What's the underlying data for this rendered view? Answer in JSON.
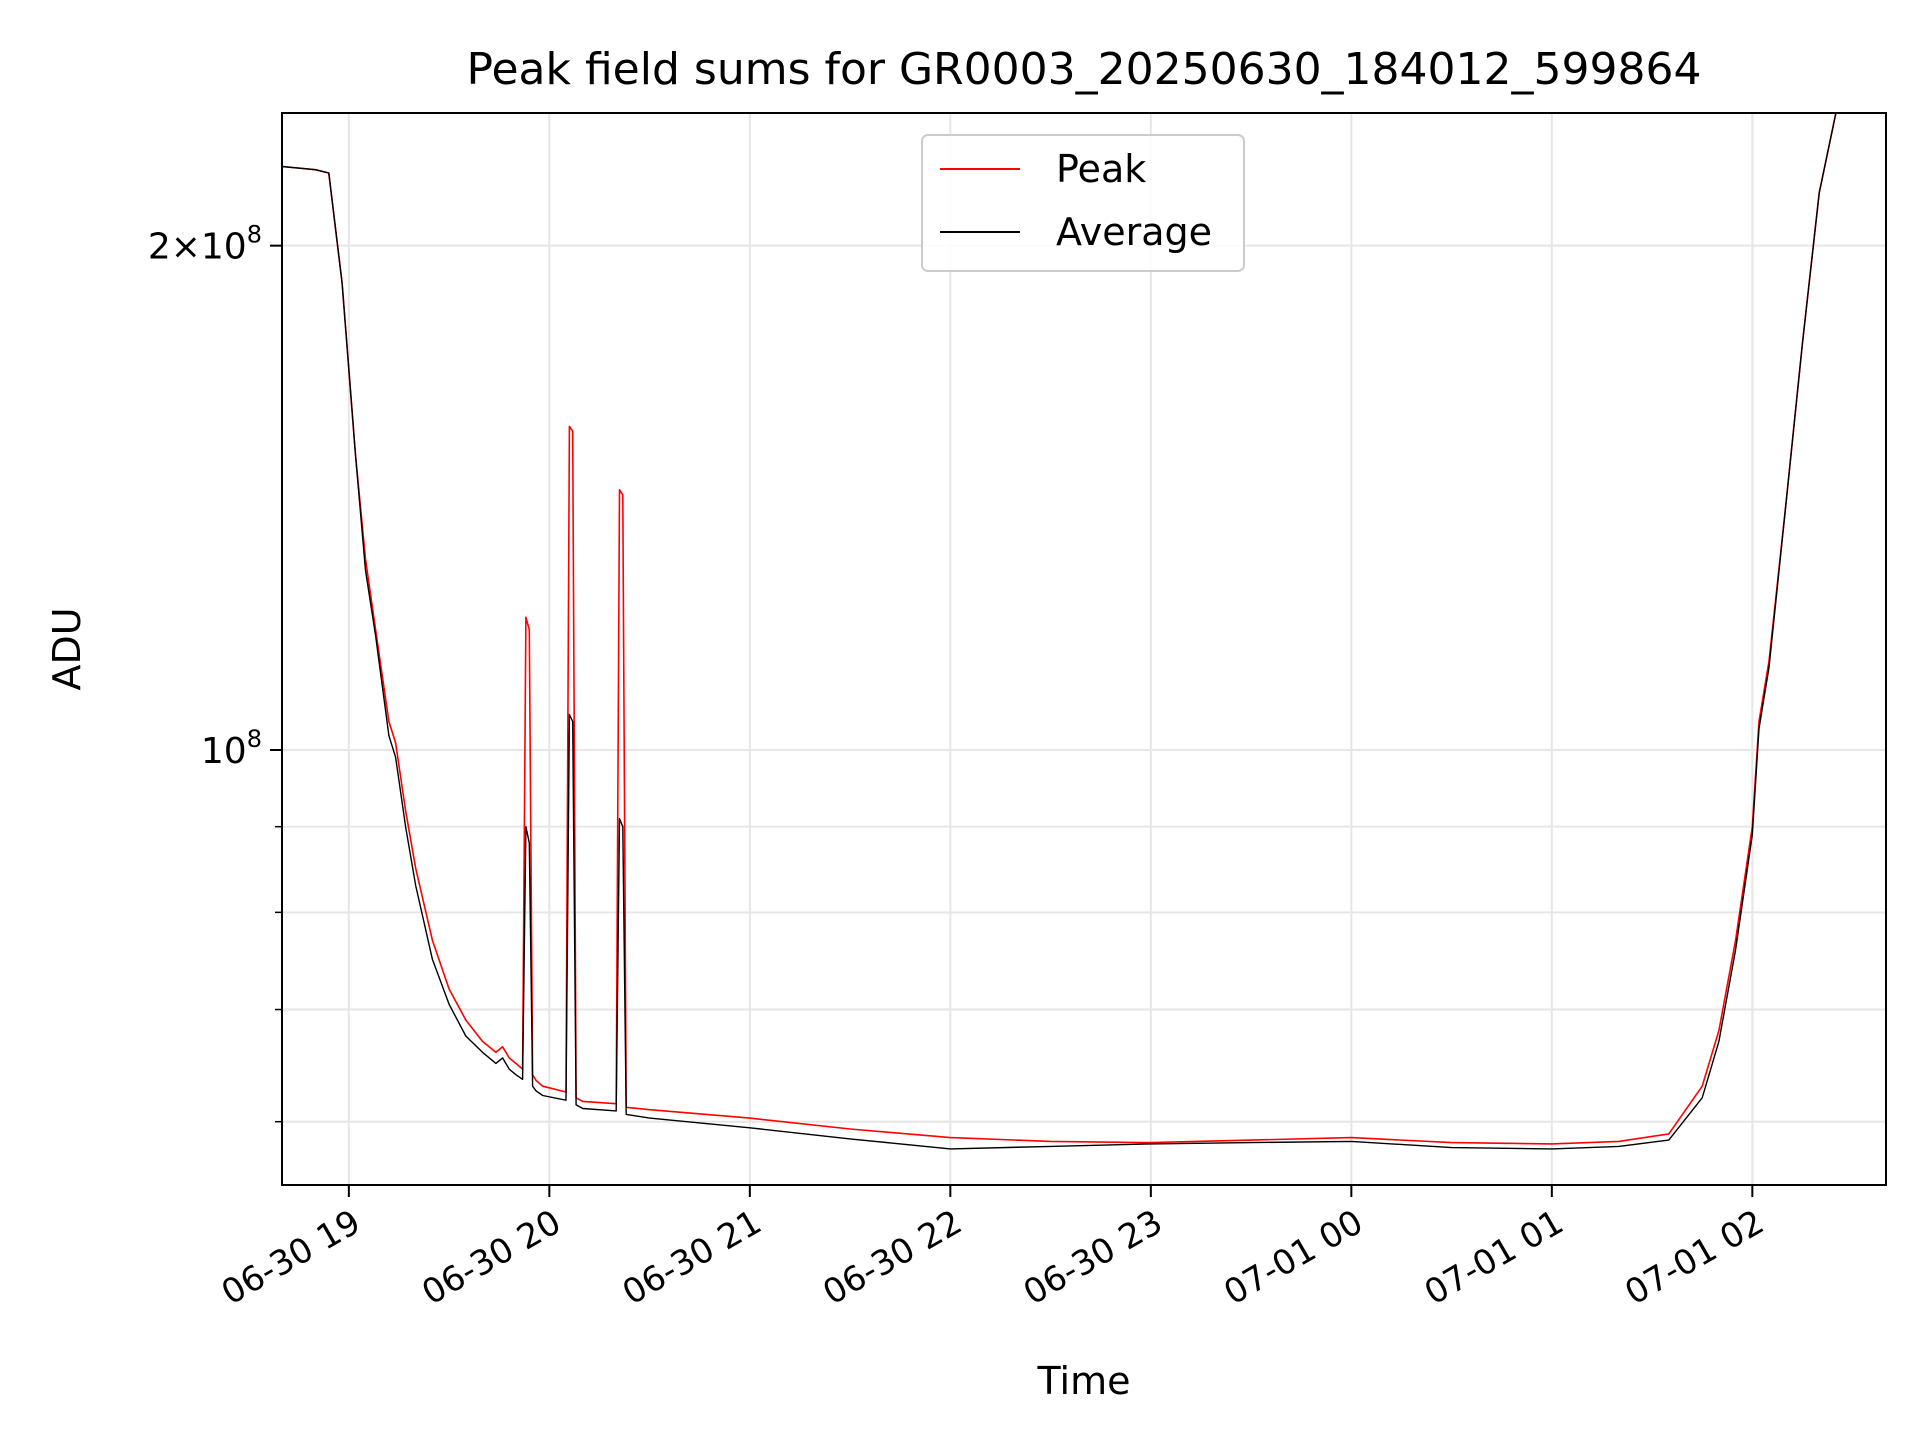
{
  "chart_data": {
    "type": "line",
    "title": "Peak field sums for GR0003_20250630_184012_599864",
    "xlabel": "Time",
    "ylabel": "ADU",
    "y_scale": "log",
    "xlim": [
      "2025-06-30 18:40",
      "2025-07-01 02:40"
    ],
    "ylim": [
      55000000,
      240000000
    ],
    "x_ticks": [
      "06-30 19",
      "06-30 20",
      "06-30 21",
      "06-30 22",
      "06-30 23",
      "07-01 00",
      "07-01 01",
      "07-01 02"
    ],
    "y_major_ticks": [
      {
        "value": 100000000,
        "label": "10^8"
      },
      {
        "value": 200000000,
        "label": "2×10^8"
      }
    ],
    "y_minor_ticks": [
      60000000,
      70000000,
      80000000,
      90000000
    ],
    "grid": true,
    "legend_position": "top-center",
    "series": [
      {
        "name": "Peak",
        "color": "#ff0000",
        "x": [
          "2025-06-30 18:40",
          "2025-06-30 18:50",
          "2025-06-30 18:54",
          "2025-06-30 18:58",
          "2025-06-30 19:02",
          "2025-06-30 19:05",
          "2025-06-30 19:08",
          "2025-06-30 19:12",
          "2025-06-30 19:14",
          "2025-06-30 19:17",
          "2025-06-30 19:20",
          "2025-06-30 19:25",
          "2025-06-30 19:30",
          "2025-06-30 19:35",
          "2025-06-30 19:40",
          "2025-06-30 19:44",
          "2025-06-30 19:46",
          "2025-06-30 19:48",
          "2025-06-30 19:50",
          "2025-06-30 19:52",
          "2025-06-30 19:53",
          "2025-06-30 19:54",
          "2025-06-30 19:55",
          "2025-06-30 19:56",
          "2025-06-30 19:58",
          "2025-06-30 20:05",
          "2025-06-30 20:06",
          "2025-06-30 20:07",
          "2025-06-30 20:08",
          "2025-06-30 20:10",
          "2025-06-30 20:20",
          "2025-06-30 20:21",
          "2025-06-30 20:22",
          "2025-06-30 20:23",
          "2025-06-30 20:30",
          "2025-06-30 21:00",
          "2025-06-30 21:30",
          "2025-06-30 22:00",
          "2025-06-30 22:30",
          "2025-06-30 23:00",
          "2025-06-30 23:30",
          "2025-07-01 00:00",
          "2025-07-01 00:30",
          "2025-07-01 01:00",
          "2025-07-01 01:20",
          "2025-07-01 01:35",
          "2025-07-01 01:45",
          "2025-07-01 01:50",
          "2025-07-01 01:55",
          "2025-07-01 02:00",
          "2025-07-01 02:02",
          "2025-07-01 02:05",
          "2025-07-01 02:10",
          "2025-07-01 02:15",
          "2025-07-01 02:20",
          "2025-07-01 02:25"
        ],
        "values": [
          223000000,
          222000000,
          221000000,
          190000000,
          150000000,
          130000000,
          118000000,
          104000000,
          101000000,
          92000000,
          85000000,
          77000000,
          72000000,
          69000000,
          67000000,
          66000000,
          66500000,
          65500000,
          65000000,
          64500000,
          120000000,
          118000000,
          64000000,
          63500000,
          63000000,
          62500000,
          156000000,
          155000000,
          62000000,
          61700000,
          61500000,
          143000000,
          142000000,
          61200000,
          61000000,
          60300000,
          59400000,
          58700000,
          58400000,
          58300000,
          58500000,
          58700000,
          58300000,
          58200000,
          58400000,
          59000000,
          63000000,
          68000000,
          77000000,
          90000000,
          104000000,
          113000000,
          140000000,
          175000000,
          215000000,
          240000000
        ]
      },
      {
        "name": "Average",
        "color": "#000000",
        "x": [
          "2025-06-30 18:40",
          "2025-06-30 18:50",
          "2025-06-30 18:54",
          "2025-06-30 18:58",
          "2025-06-30 19:02",
          "2025-06-30 19:05",
          "2025-06-30 19:08",
          "2025-06-30 19:12",
          "2025-06-30 19:14",
          "2025-06-30 19:17",
          "2025-06-30 19:20",
          "2025-06-30 19:25",
          "2025-06-30 19:30",
          "2025-06-30 19:35",
          "2025-06-30 19:40",
          "2025-06-30 19:44",
          "2025-06-30 19:46",
          "2025-06-30 19:48",
          "2025-06-30 19:50",
          "2025-06-30 19:52",
          "2025-06-30 19:53",
          "2025-06-30 19:54",
          "2025-06-30 19:55",
          "2025-06-30 19:56",
          "2025-06-30 19:58",
          "2025-06-30 20:05",
          "2025-06-30 20:06",
          "2025-06-30 20:07",
          "2025-06-30 20:08",
          "2025-06-30 20:10",
          "2025-06-30 20:20",
          "2025-06-30 20:21",
          "2025-06-30 20:22",
          "2025-06-30 20:23",
          "2025-06-30 20:30",
          "2025-06-30 21:00",
          "2025-06-30 21:30",
          "2025-06-30 22:00",
          "2025-06-30 22:30",
          "2025-06-30 23:00",
          "2025-06-30 23:30",
          "2025-07-01 00:00",
          "2025-07-01 00:30",
          "2025-07-01 01:00",
          "2025-07-01 01:20",
          "2025-07-01 01:35",
          "2025-07-01 01:45",
          "2025-07-01 01:50",
          "2025-07-01 01:55",
          "2025-07-01 02:00",
          "2025-07-01 02:02",
          "2025-07-01 02:05",
          "2025-07-01 02:10",
          "2025-07-01 02:15",
          "2025-07-01 02:20",
          "2025-07-01 02:25"
        ],
        "values": [
          223000000,
          222000000,
          221000000,
          190000000,
          150000000,
          128000000,
          117000000,
          102000000,
          99000000,
          90000000,
          83000000,
          75000000,
          70500000,
          67500000,
          66000000,
          65000000,
          65500000,
          64500000,
          64000000,
          63600000,
          90000000,
          88000000,
          63000000,
          62600000,
          62200000,
          61800000,
          105000000,
          104000000,
          61400000,
          61100000,
          60900000,
          91000000,
          90000000,
          60600000,
          60300000,
          59500000,
          58600000,
          57800000,
          58000000,
          58200000,
          58300000,
          58400000,
          57900000,
          57800000,
          58000000,
          58500000,
          62000000,
          67000000,
          76000000,
          89000000,
          103000000,
          112000000,
          140000000,
          175000000,
          215000000,
          240000000
        ]
      }
    ]
  }
}
